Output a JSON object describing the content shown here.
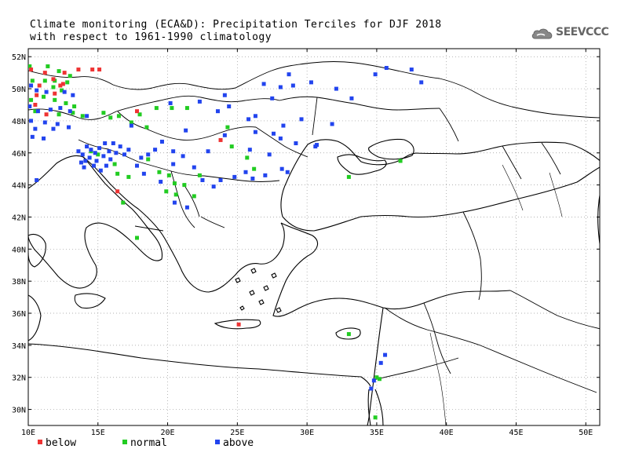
{
  "title": {
    "line1": "Climate monitoring (ECA&D): Precipitation Terciles for DJF 2018",
    "line2": "with respect to 1961-1990 climatology"
  },
  "logo": {
    "text": "SEEVCCC",
    "icon": "cloud-icon"
  },
  "map": {
    "lon_range": [
      10,
      51
    ],
    "lat_range": [
      29,
      52.5
    ],
    "lon_ticks": [
      "10E",
      "15E",
      "20E",
      "25E",
      "30E",
      "35E",
      "40E",
      "45E",
      "50E"
    ],
    "lat_ticks": [
      "52N",
      "50N",
      "48N",
      "46N",
      "44N",
      "42N",
      "40N",
      "38N",
      "36N",
      "34N",
      "32N",
      "30N"
    ],
    "grid": "dotted",
    "colors": {
      "below": "#ee3333",
      "normal": "#22cc22",
      "above": "#2244ee",
      "coast": "#000000",
      "border": "#000000"
    }
  },
  "legend": {
    "below": "below",
    "normal": "normal",
    "above": "above"
  },
  "stations": {
    "below": [
      [
        10.2,
        51.2
      ],
      [
        11.2,
        51.0
      ],
      [
        11.8,
        50.6
      ],
      [
        12.6,
        51.0
      ],
      [
        13.6,
        51.2
      ],
      [
        14.6,
        51.2
      ],
      [
        15.1,
        51.2
      ],
      [
        10.8,
        50.2
      ],
      [
        12.3,
        50.2
      ],
      [
        10.6,
        49.6
      ],
      [
        11.9,
        49.7
      ],
      [
        10.5,
        49.0
      ],
      [
        11.3,
        48.4
      ],
      [
        17.8,
        48.6
      ],
      [
        23.8,
        46.8
      ],
      [
        16.4,
        43.6
      ],
      [
        25.1,
        35.3
      ],
      [
        12.5,
        50.3
      ]
    ],
    "normal": [
      [
        10.1,
        51.4
      ],
      [
        11.4,
        51.4
      ],
      [
        12.2,
        51.1
      ],
      [
        13.0,
        50.8
      ],
      [
        10.3,
        50.5
      ],
      [
        11.2,
        50.5
      ],
      [
        11.9,
        50.5
      ],
      [
        12.8,
        50.4
      ],
      [
        11.8,
        50.1
      ],
      [
        12.4,
        49.9
      ],
      [
        10.2,
        49.3
      ],
      [
        11.1,
        49.5
      ],
      [
        11.9,
        49.3
      ],
      [
        12.7,
        49.1
      ],
      [
        13.3,
        48.9
      ],
      [
        10.5,
        48.6
      ],
      [
        12.2,
        48.4
      ],
      [
        13.2,
        48.5
      ],
      [
        13.9,
        48.3
      ],
      [
        15.9,
        48.2
      ],
      [
        16.5,
        48.3
      ],
      [
        17.4,
        47.9
      ],
      [
        18.0,
        48.4
      ],
      [
        18.5,
        47.6
      ],
      [
        19.2,
        48.8
      ],
      [
        20.3,
        48.8
      ],
      [
        21.4,
        48.8
      ],
      [
        24.3,
        47.6
      ],
      [
        14.5,
        46.1
      ],
      [
        15.0,
        45.9
      ],
      [
        16.2,
        45.3
      ],
      [
        16.4,
        44.7
      ],
      [
        17.2,
        44.5
      ],
      [
        18.6,
        45.6
      ],
      [
        19.4,
        44.8
      ],
      [
        20.1,
        44.6
      ],
      [
        20.5,
        44.1
      ],
      [
        21.2,
        44.0
      ],
      [
        22.3,
        44.6
      ],
      [
        19.9,
        43.6
      ],
      [
        20.6,
        43.4
      ],
      [
        21.9,
        43.3
      ],
      [
        16.8,
        42.9
      ],
      [
        17.8,
        40.7
      ],
      [
        24.6,
        46.4
      ],
      [
        25.7,
        45.7
      ],
      [
        26.2,
        45.0
      ],
      [
        33.0,
        44.5
      ],
      [
        36.7,
        45.5
      ],
      [
        33.0,
        34.7
      ],
      [
        35.0,
        32.0
      ],
      [
        35.2,
        31.9
      ],
      [
        34.9,
        29.5
      ],
      [
        15.4,
        48.5
      ]
    ],
    "above": [
      [
        10.2,
        50.2
      ],
      [
        10.6,
        49.9
      ],
      [
        11.3,
        49.8
      ],
      [
        12.6,
        49.8
      ],
      [
        13.2,
        49.6
      ],
      [
        10.1,
        48.9
      ],
      [
        10.7,
        48.6
      ],
      [
        11.6,
        48.7
      ],
      [
        12.3,
        48.8
      ],
      [
        13.0,
        48.6
      ],
      [
        14.2,
        48.3
      ],
      [
        10.2,
        48.0
      ],
      [
        11.2,
        47.9
      ],
      [
        12.1,
        47.8
      ],
      [
        10.5,
        47.5
      ],
      [
        11.8,
        47.5
      ],
      [
        12.9,
        47.6
      ],
      [
        10.3,
        47.0
      ],
      [
        11.1,
        46.9
      ],
      [
        10.6,
        44.3
      ],
      [
        13.6,
        46.1
      ],
      [
        13.9,
        45.9
      ],
      [
        14.2,
        46.4
      ],
      [
        14.5,
        46.2
      ],
      [
        14.8,
        46.0
      ],
      [
        15.1,
        46.3
      ],
      [
        15.4,
        45.8
      ],
      [
        15.8,
        46.1
      ],
      [
        16.1,
        46.6
      ],
      [
        16.6,
        46.4
      ],
      [
        14.1,
        45.5
      ],
      [
        14.7,
        45.2
      ],
      [
        15.2,
        44.9
      ],
      [
        15.9,
        45.6
      ],
      [
        16.3,
        46.0
      ],
      [
        14.4,
        45.7
      ],
      [
        15.5,
        46.6
      ],
      [
        13.8,
        45.4
      ],
      [
        14.0,
        45.1
      ],
      [
        14.9,
        45.5
      ],
      [
        15.6,
        45.2
      ],
      [
        16.9,
        45.9
      ],
      [
        18.1,
        45.7
      ],
      [
        20.4,
        46.1
      ],
      [
        19.1,
        46.2
      ],
      [
        17.2,
        46.2
      ],
      [
        18.6,
        45.9
      ],
      [
        20.4,
        45.3
      ],
      [
        21.1,
        45.8
      ],
      [
        22.9,
        46.1
      ],
      [
        24.1,
        47.1
      ],
      [
        26.3,
        47.3
      ],
      [
        27.6,
        47.2
      ],
      [
        28.1,
        46.9
      ],
      [
        29.2,
        46.6
      ],
      [
        30.7,
        46.5
      ],
      [
        23.8,
        44.3
      ],
      [
        24.8,
        44.5
      ],
      [
        25.6,
        44.8
      ],
      [
        26.1,
        44.4
      ],
      [
        27.0,
        44.6
      ],
      [
        28.2,
        45.0
      ],
      [
        28.6,
        44.8
      ],
      [
        27.3,
        45.9
      ],
      [
        25.9,
        46.2
      ],
      [
        21.9,
        45.1
      ],
      [
        22.5,
        44.3
      ],
      [
        23.3,
        43.9
      ],
      [
        18.3,
        44.7
      ],
      [
        20.5,
        42.9
      ],
      [
        21.4,
        42.6
      ],
      [
        19.5,
        44.2
      ],
      [
        17.8,
        45.2
      ],
      [
        26.3,
        48.3
      ],
      [
        28.3,
        47.7
      ],
      [
        29.6,
        48.1
      ],
      [
        27.5,
        49.4
      ],
      [
        29.0,
        50.2
      ],
      [
        30.3,
        50.4
      ],
      [
        32.1,
        50.0
      ],
      [
        33.2,
        49.4
      ],
      [
        34.9,
        50.9
      ],
      [
        35.7,
        51.3
      ],
      [
        37.5,
        51.2
      ],
      [
        38.2,
        50.4
      ],
      [
        31.8,
        47.8
      ],
      [
        30.6,
        46.4
      ],
      [
        20.2,
        49.1
      ],
      [
        22.3,
        49.2
      ],
      [
        24.1,
        49.6
      ],
      [
        26.9,
        50.3
      ],
      [
        34.6,
        31.3
      ],
      [
        35.6,
        33.4
      ],
      [
        34.8,
        31.8
      ],
      [
        35.3,
        32.9
      ],
      [
        28.7,
        50.9
      ],
      [
        28.1,
        50.1
      ],
      [
        24.4,
        48.9
      ],
      [
        25.8,
        48.1
      ],
      [
        23.6,
        48.6
      ],
      [
        21.3,
        47.4
      ],
      [
        19.6,
        46.7
      ],
      [
        17.4,
        47.7
      ]
    ]
  }
}
